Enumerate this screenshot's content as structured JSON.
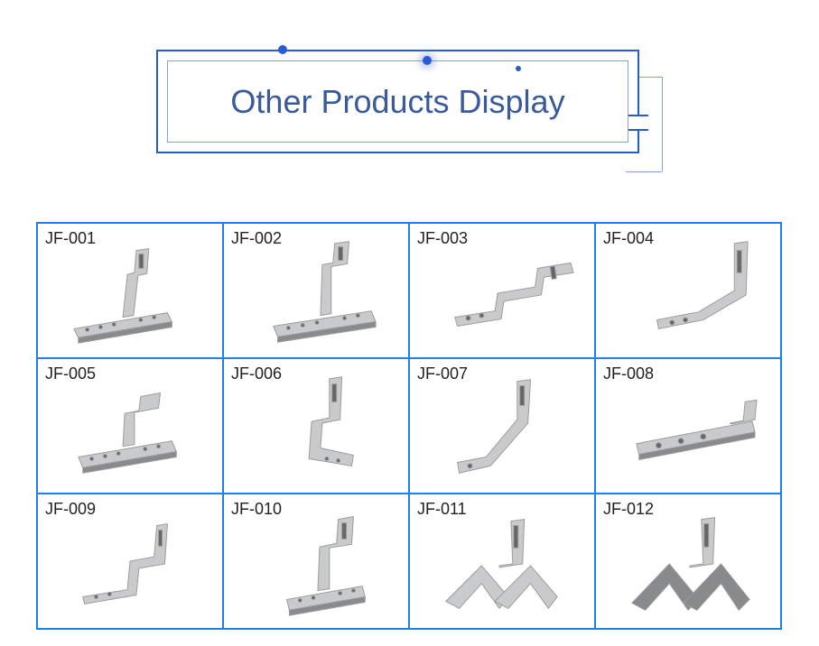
{
  "colors": {
    "frame_blue": "#2a5bd7",
    "light_blue": "#7ea3e8",
    "title_color": "#3a5a9a",
    "grid_border": "#1f7ef0",
    "bracket_fill": "#c9cacb",
    "bracket_stroke": "#9b9c9d",
    "bracket_dark": "#888a8c",
    "label_color": "#222222"
  },
  "header": {
    "title": "Other Products Display",
    "title_fontsize": 36
  },
  "grid": {
    "rows": 3,
    "cols": 4,
    "cell_border_color": "#1f7ef0",
    "items": [
      {
        "label": "JF-001",
        "shape": "hook_base"
      },
      {
        "label": "JF-002",
        "shape": "hook_base_tall"
      },
      {
        "label": "JF-003",
        "shape": "z_bracket"
      },
      {
        "label": "JF-004",
        "shape": "l_bracket"
      },
      {
        "label": "JF-005",
        "shape": "hook_base_low"
      },
      {
        "label": "JF-006",
        "shape": "step_bracket"
      },
      {
        "label": "JF-007",
        "shape": "angle_bracket"
      },
      {
        "label": "JF-008",
        "shape": "flat_clip"
      },
      {
        "label": "JF-009",
        "shape": "hook_thin"
      },
      {
        "label": "JF-010",
        "shape": "hook_plate"
      },
      {
        "label": "JF-011",
        "shape": "ridge_bracket"
      },
      {
        "label": "JF-012",
        "shape": "ridge_bracket_dark"
      }
    ]
  }
}
